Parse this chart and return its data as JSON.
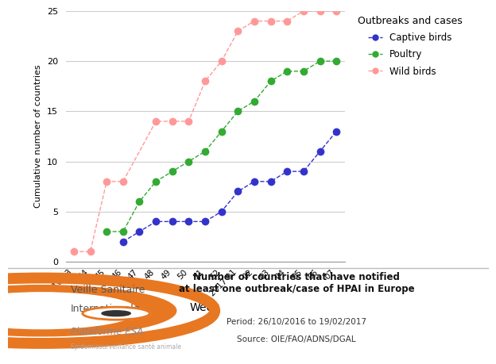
{
  "weeks": [
    "2016 43",
    "44",
    "45",
    "46",
    "47",
    "48",
    "49",
    "50",
    "51",
    "52",
    "2017 01",
    "02",
    "03",
    "04",
    "05",
    "06",
    "07"
  ],
  "captive_x": [
    3,
    4,
    5,
    6,
    7,
    8,
    9,
    10,
    11,
    12,
    13,
    14,
    15,
    16
  ],
  "captive_y": [
    2,
    3,
    4,
    4,
    4,
    4,
    5,
    7,
    8,
    8,
    9,
    9,
    11,
    13
  ],
  "poultry_x": [
    2,
    3,
    4,
    5,
    6,
    7,
    8,
    9,
    10,
    11,
    12,
    13,
    14,
    15,
    16
  ],
  "poultry_y": [
    3,
    3,
    6,
    8,
    9,
    10,
    11,
    13,
    15,
    16,
    18,
    19,
    19,
    20,
    20
  ],
  "wild_x": [
    0,
    1,
    2,
    3,
    5,
    6,
    7,
    8,
    9,
    10,
    11,
    12,
    13,
    14,
    15,
    16
  ],
  "wild_y": [
    1,
    1,
    8,
    8,
    14,
    14,
    14,
    18,
    20,
    23,
    24,
    24,
    24,
    25,
    25,
    25
  ],
  "color_captive": "#3333cc",
  "color_poultry": "#33aa33",
  "color_wild": "#ff9999",
  "ylim": [
    0,
    25
  ],
  "yticks": [
    0,
    5,
    10,
    15,
    20,
    25
  ],
  "xlabel": "Week",
  "ylabel": "Cumulative number of countries",
  "legend_title": "Outbreaks and cases",
  "legend_labels": [
    "Captive birds",
    "Poultry",
    "Wild birds"
  ],
  "footer_title_bold": "Number of countries that have notified\nat least one outbreak/case of HPAI in Europe",
  "footer_period": "Period: 26/10/2016 to 19/02/2017",
  "footer_source": "Source: OIE/FAO/ADNS/DGAL",
  "footer_org1": "Veille Sanitaire",
  "footer_org2": "Internationale",
  "footer_org3": "Plateforme ESA",
  "footer_org4": "Epidemiosurveillance santé animale",
  "bg_color": "#ffffff",
  "footer_bg": "#f2f2f2",
  "footer_line_color": "#bbbbbb",
  "orange_color": "#e87722"
}
